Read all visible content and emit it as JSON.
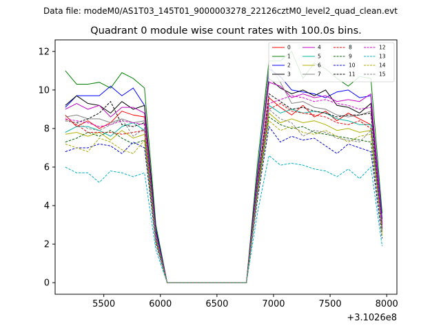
{
  "suptitle": "Data file: modeM0/AS1T03_145T01_9000003278_22126cztM0_level2_quad_clean.evt",
  "chart_data": {
    "type": "line",
    "title": "Quadrant 0 module wise count rates with 100.0s bins.",
    "xlabel": "",
    "ylabel": "",
    "x_offset_label": "+3.1026e8",
    "xlim": [
      5070,
      8090
    ],
    "ylim": [
      -0.6,
      12.6
    ],
    "xticks": [
      5500,
      6000,
      6500,
      7000,
      7500,
      8000
    ],
    "yticks": [
      0,
      2,
      4,
      6,
      8,
      10,
      12
    ],
    "legend_position": "top-right",
    "legend_ncol": 4,
    "x": [
      5160,
      5260,
      5360,
      5460,
      5560,
      5660,
      5760,
      5860,
      5960,
      6060,
      6160,
      6260,
      6360,
      6460,
      6560,
      6660,
      6760,
      6860,
      6960,
      7060,
      7160,
      7260,
      7360,
      7460,
      7560,
      7660,
      7760,
      7860,
      7960
    ],
    "series": [
      {
        "name": "0",
        "color": "#ff0000",
        "dash": "solid",
        "values": [
          8.7,
          8.1,
          8.4,
          8.0,
          8.3,
          8.9,
          8.7,
          8.6,
          2.5,
          0,
          0,
          0,
          0,
          0,
          0,
          0,
          0,
          5.2,
          9.6,
          9.1,
          8.7,
          9.2,
          8.6,
          8.9,
          8.4,
          8.8,
          8.5,
          8.2,
          2.9
        ]
      },
      {
        "name": "1",
        "color": "#008000",
        "dash": "solid",
        "values": [
          11.0,
          10.3,
          10.3,
          10.4,
          10.1,
          10.9,
          10.6,
          10.1,
          3.0,
          0,
          0,
          0,
          0,
          0,
          0,
          0,
          0,
          6.3,
          11.5,
          11.5,
          12.0,
          10.6,
          11.4,
          11.1,
          10.6,
          10.2,
          10.7,
          10.6,
          3.6
        ]
      },
      {
        "name": "2",
        "color": "#0000ff",
        "dash": "solid",
        "values": [
          9.1,
          9.7,
          9.7,
          9.7,
          10.2,
          9.7,
          10.1,
          9.2,
          2.8,
          0,
          0,
          0,
          0,
          0,
          0,
          0,
          0,
          5.8,
          11.1,
          10.7,
          10.0,
          9.9,
          9.8,
          9.6,
          9.9,
          10.0,
          9.6,
          9.7,
          3.3
        ]
      },
      {
        "name": "3",
        "color": "#000000",
        "dash": "solid",
        "values": [
          9.2,
          9.7,
          9.3,
          9.2,
          8.8,
          9.4,
          9.0,
          9.2,
          2.7,
          0,
          0,
          0,
          0,
          0,
          0,
          0,
          0,
          5.7,
          10.6,
          10.1,
          9.8,
          10.0,
          9.7,
          10.0,
          9.2,
          9.1,
          8.8,
          9.3,
          3.1
        ]
      },
      {
        "name": "4",
        "color": "#c000c0",
        "dash": "solid",
        "values": [
          9.0,
          9.3,
          9.0,
          9.2,
          8.6,
          9.1,
          9.1,
          8.8,
          2.6,
          0,
          0,
          0,
          0,
          0,
          0,
          0,
          0,
          5.6,
          10.4,
          10.2,
          9.6,
          9.8,
          9.6,
          9.7,
          9.4,
          9.5,
          9.4,
          9.8,
          3.0
        ]
      },
      {
        "name": "5",
        "color": "#00b3a0",
        "dash": "solid",
        "values": [
          7.8,
          8.1,
          8.1,
          7.9,
          7.6,
          8.1,
          8.3,
          7.9,
          2.3,
          0,
          0,
          0,
          0,
          0,
          0,
          0,
          0,
          5.0,
          9.2,
          8.8,
          9.0,
          8.8,
          8.9,
          8.8,
          8.5,
          8.4,
          8.2,
          8.2,
          2.7
        ]
      },
      {
        "name": "6",
        "color": "#b0b000",
        "dash": "solid",
        "values": [
          7.7,
          7.8,
          7.6,
          7.8,
          7.4,
          7.9,
          7.5,
          7.7,
          2.2,
          0,
          0,
          0,
          0,
          0,
          0,
          0,
          0,
          4.8,
          8.8,
          8.3,
          8.5,
          8.3,
          8.4,
          8.2,
          7.9,
          8.0,
          7.8,
          7.9,
          2.6
        ]
      },
      {
        "name": "7",
        "color": "#808080",
        "dash": "solid",
        "values": [
          8.6,
          8.7,
          8.5,
          8.5,
          8.3,
          8.5,
          8.3,
          8.4,
          2.5,
          0,
          0,
          0,
          0,
          0,
          0,
          0,
          0,
          5.3,
          11.3,
          10.4,
          9.3,
          9.4,
          9.1,
          9.0,
          8.7,
          8.6,
          8.7,
          8.9,
          2.9
        ]
      },
      {
        "name": "8",
        "color": "#e00000",
        "dash": "dashed",
        "values": [
          8.5,
          8.2,
          7.8,
          7.8,
          7.8,
          7.7,
          7.8,
          7.9,
          2.3,
          0,
          0,
          0,
          0,
          0,
          0,
          0,
          0,
          5.0,
          9.0,
          9.3,
          8.9,
          8.8,
          8.7,
          8.6,
          8.3,
          8.2,
          8.4,
          8.0,
          2.7
        ]
      },
      {
        "name": "9",
        "color": "#006000",
        "dash": "dashed",
        "values": [
          7.3,
          7.5,
          7.8,
          7.6,
          7.9,
          7.5,
          7.2,
          7.4,
          2.2,
          0,
          0,
          0,
          0,
          0,
          0,
          0,
          0,
          4.8,
          8.6,
          8.2,
          8.0,
          8.1,
          7.8,
          7.7,
          7.6,
          7.5,
          7.4,
          7.3,
          2.5
        ]
      },
      {
        "name": "10",
        "color": "#0000d0",
        "dash": "dashed",
        "values": [
          6.8,
          7.0,
          7.0,
          7.2,
          7.1,
          6.7,
          7.3,
          7.0,
          2.0,
          0,
          0,
          0,
          0,
          0,
          0,
          0,
          0,
          4.4,
          8.1,
          7.3,
          7.6,
          7.4,
          7.5,
          7.1,
          6.7,
          7.2,
          7.0,
          6.8,
          2.3
        ]
      },
      {
        "name": "11",
        "color": "#000000",
        "dash": "dashed",
        "values": [
          8.4,
          8.3,
          8.5,
          8.8,
          9.4,
          8.2,
          8.1,
          8.3,
          2.4,
          0,
          0,
          0,
          0,
          0,
          0,
          0,
          0,
          5.2,
          9.8,
          9.4,
          9.0,
          9.1,
          8.9,
          8.8,
          8.6,
          8.7,
          8.7,
          8.8,
          2.8
        ]
      },
      {
        "name": "12",
        "color": "#d000d0",
        "dash": "dashed",
        "values": [
          8.5,
          8.4,
          8.3,
          8.1,
          8.2,
          8.4,
          8.3,
          8.2,
          2.4,
          0,
          0,
          0,
          0,
          0,
          0,
          0,
          0,
          5.1,
          9.3,
          9.5,
          9.7,
          9.6,
          9.4,
          9.5,
          9.3,
          9.2,
          9.0,
          9.1,
          2.9
        ]
      },
      {
        "name": "13",
        "color": "#00b0c0",
        "dash": "dashed",
        "values": [
          6.0,
          5.7,
          5.7,
          5.2,
          5.8,
          5.7,
          5.5,
          5.7,
          1.7,
          0,
          0,
          0,
          0,
          0,
          0,
          0,
          0,
          3.7,
          6.6,
          6.1,
          6.2,
          6.1,
          5.9,
          5.8,
          5.5,
          5.9,
          5.4,
          6.0,
          1.9
        ]
      },
      {
        "name": "14",
        "color": "#a8a800",
        "dash": "dashed",
        "values": [
          7.2,
          7.0,
          6.8,
          7.5,
          7.3,
          6.9,
          6.7,
          7.4,
          2.1,
          0,
          0,
          0,
          0,
          0,
          0,
          0,
          0,
          4.6,
          8.4,
          7.9,
          8.1,
          7.8,
          7.7,
          7.9,
          7.6,
          7.3,
          7.6,
          7.7,
          2.4
        ]
      },
      {
        "name": "15",
        "color": "#808080",
        "dash": "dashed",
        "values": [
          8.4,
          8.3,
          8.0,
          7.9,
          8.2,
          8.5,
          7.6,
          8.0,
          2.3,
          0,
          0,
          0,
          0,
          0,
          0,
          0,
          0,
          5.0,
          9.0,
          8.5,
          8.3,
          7.6,
          7.9,
          7.8,
          7.5,
          7.4,
          7.3,
          7.9,
          2.7
        ]
      }
    ]
  }
}
